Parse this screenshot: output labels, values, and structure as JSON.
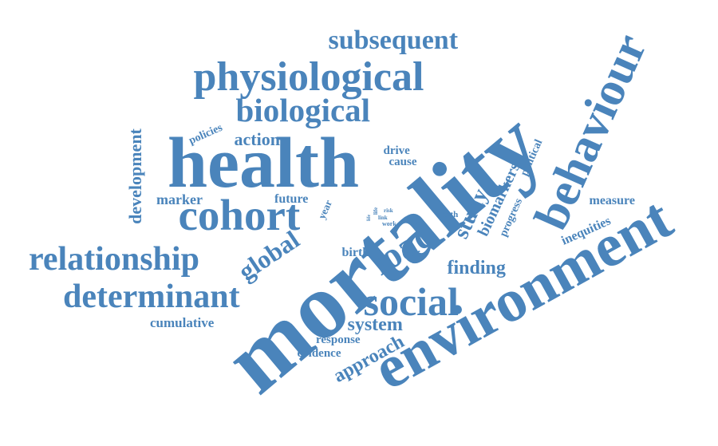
{
  "words": [
    {
      "text": "mortality"
    },
    {
      "text": "health"
    },
    {
      "text": "environment"
    },
    {
      "text": "behaviour"
    },
    {
      "text": "physiological"
    },
    {
      "text": "cohort"
    },
    {
      "text": "relationship"
    },
    {
      "text": "determinant"
    },
    {
      "text": "biological"
    },
    {
      "text": "social"
    },
    {
      "text": "load"
    },
    {
      "text": "subsequent"
    },
    {
      "text": "measure"
    },
    {
      "text": "global"
    },
    {
      "text": "development"
    },
    {
      "text": "study"
    },
    {
      "text": "biomarkers"
    },
    {
      "text": "approach"
    },
    {
      "text": "system"
    },
    {
      "text": "finding"
    },
    {
      "text": "action"
    },
    {
      "text": "marker"
    },
    {
      "text": "cumulative"
    },
    {
      "text": "inequities"
    },
    {
      "text": "progress"
    },
    {
      "text": "political"
    },
    {
      "text": "drive"
    },
    {
      "text": "cause"
    },
    {
      "text": "future"
    },
    {
      "text": "policies"
    },
    {
      "text": "birth"
    },
    {
      "text": "response"
    },
    {
      "text": "evidence"
    },
    {
      "text": "year"
    },
    {
      "text": "death"
    },
    {
      "text": "life"
    },
    {
      "text": "risk"
    },
    {
      "text": "link"
    },
    {
      "text": "work"
    },
    {
      "text": "life"
    }
  ],
  "colors": {
    "word": "#4a84bb",
    "background": "#ffffff"
  }
}
